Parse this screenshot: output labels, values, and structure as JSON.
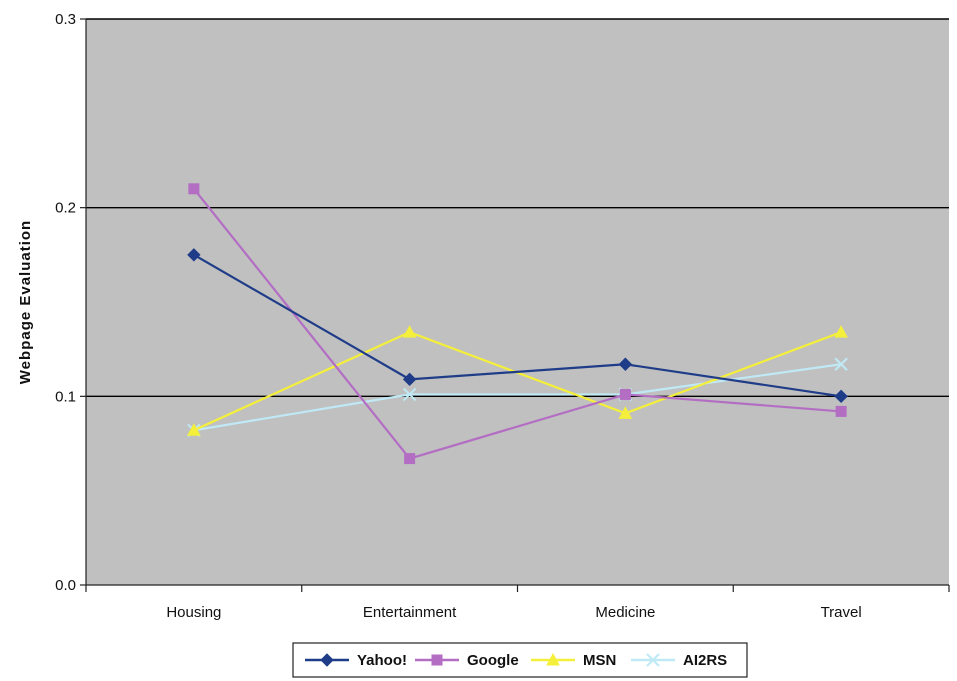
{
  "chart_data": {
    "type": "line",
    "title": "",
    "xlabel": "",
    "ylabel": "Webpage Evaluation",
    "categories": [
      "Housing",
      "Entertainment",
      "Medicine",
      "Travel"
    ],
    "ylim": [
      0,
      0.3
    ],
    "yticks": [
      0,
      0.1,
      0.2,
      0.3
    ],
    "ytick_labels": [
      "0.0",
      "0.1",
      "0.2",
      "0.3"
    ],
    "grid": true,
    "legend_position": "bottom",
    "plot_background": "#c0c0c0",
    "series": [
      {
        "name": "Yahoo!",
        "values": [
          0.175,
          0.109,
          0.117,
          0.1
        ],
        "color": "#1f3c88",
        "marker": "diamond"
      },
      {
        "name": "Google",
        "values": [
          0.21,
          0.067,
          0.101,
          0.092
        ],
        "color": "#b36ec4",
        "marker": "square"
      },
      {
        "name": "MSN",
        "values": [
          0.082,
          0.134,
          0.091,
          0.134
        ],
        "color": "#f4ef3a",
        "marker": "triangle"
      },
      {
        "name": "AI2RS",
        "values": [
          0.082,
          0.101,
          0.101,
          0.117
        ],
        "color": "#bfe9f5",
        "marker": "x"
      }
    ]
  }
}
